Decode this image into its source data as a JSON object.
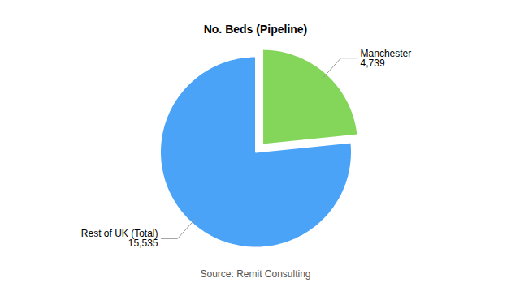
{
  "chart_data": {
    "type": "pie",
    "title": "No. Beds (Pipeline)",
    "categories": [
      "Manchester",
      "Rest of UK (Total)"
    ],
    "values": [
      4739,
      15535
    ],
    "value_labels": [
      "4,739",
      "15,535"
    ],
    "colors": [
      "#84d65a",
      "#4aa3f7"
    ],
    "data_labels": true,
    "caption": "Source: Remit Consulting"
  }
}
